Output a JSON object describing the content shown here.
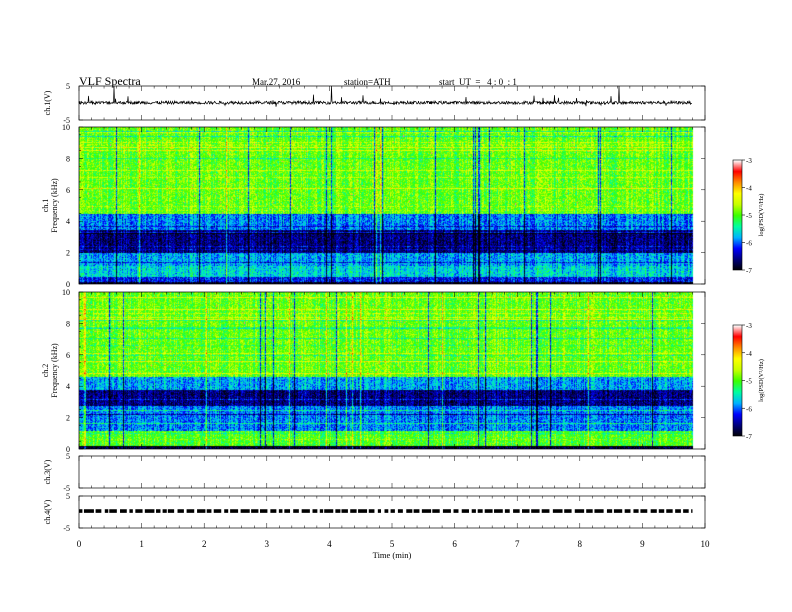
{
  "header": {
    "title": "VLF Spectra",
    "date": "Mar.27, 2016",
    "station": "station=ATH",
    "start": "start  UT  =   4 : 0  : 1"
  },
  "colors": {
    "background": "#ffffff",
    "axis": "#000000",
    "colormap": [
      "#000000",
      "#00007a",
      "#0000ff",
      "#00b4ff",
      "#00ffa0",
      "#3cff00",
      "#c8ff00",
      "#ffff00",
      "#ff8c00",
      "#ff0000",
      "#ffffff"
    ]
  },
  "chart_data": [
    {
      "type": "line",
      "name": "ch1-waveform",
      "ylabel": "ch.1(V)",
      "yticks": [
        "5",
        "-5"
      ],
      "ylim": [
        -5,
        5
      ],
      "xlim": [
        0,
        10
      ],
      "trace": {
        "baseline": 0.1,
        "span_min": [
          0,
          9.8
        ],
        "spikes_typical": [
          -1.2,
          2.5
        ],
        "spikes_max": [
          -5,
          5
        ]
      }
    },
    {
      "type": "heatmap",
      "name": "ch1-spectrogram",
      "ylabel": "ch.1\nFrequency  (kHz)",
      "yticks": [
        "10",
        "8",
        "6",
        "4",
        "2",
        "0"
      ],
      "ylim": [
        0,
        10
      ],
      "xlim": [
        0,
        10
      ],
      "data_extent_min": [
        0,
        9.8
      ],
      "colorbar": {
        "label": "log(PSD(V²/Hz)",
        "ticks": [
          "-3",
          "-4",
          "-5",
          "-6",
          "-7"
        ],
        "range": [
          -7,
          -3
        ]
      },
      "bands": [
        {
          "f": [
            0.0,
            0.15
          ],
          "log_psd": -6.9
        },
        {
          "f": [
            0.15,
            0.5
          ],
          "log_psd": -6.2
        },
        {
          "f": [
            0.5,
            1.2
          ],
          "log_psd": -5.6
        },
        {
          "f": [
            1.2,
            2.0
          ],
          "log_psd": -5.8
        },
        {
          "f": [
            2.0,
            3.5
          ],
          "log_psd": -6.6
        },
        {
          "f": [
            3.5,
            4.5
          ],
          "log_psd": -5.9
        },
        {
          "f": [
            4.5,
            10.0
          ],
          "log_psd": -4.9
        }
      ]
    },
    {
      "type": "heatmap",
      "name": "ch2-spectrogram",
      "ylabel": "ch.2\nFrequency  (kHz)",
      "yticks": [
        "10",
        "8",
        "6",
        "4",
        "2",
        "0"
      ],
      "ylim": [
        0,
        10
      ],
      "xlim": [
        0,
        10
      ],
      "data_extent_min": [
        0,
        9.8
      ],
      "colorbar": {
        "label": "log(PSD(V²/Hz)",
        "ticks": [
          "-3",
          "-4",
          "-5",
          "-6",
          "-7"
        ],
        "range": [
          -7,
          -3
        ]
      },
      "bands": [
        {
          "f": [
            0.0,
            0.2
          ],
          "log_psd": -6.8
        },
        {
          "f": [
            0.2,
            1.2
          ],
          "log_psd": -5.0
        },
        {
          "f": [
            1.2,
            2.8
          ],
          "log_psd": -5.9
        },
        {
          "f": [
            2.8,
            3.8
          ],
          "log_psd": -6.6
        },
        {
          "f": [
            3.8,
            4.6
          ],
          "log_psd": -5.8
        },
        {
          "f": [
            4.6,
            10.0
          ],
          "log_psd": -4.9
        }
      ]
    },
    {
      "type": "line",
      "name": "ch3-waveform",
      "ylabel": "ch.3(V)",
      "yticks": [
        "5",
        "-5"
      ],
      "ylim": [
        -5,
        5
      ],
      "xlim": [
        0,
        10
      ],
      "trace": null
    },
    {
      "type": "line",
      "name": "ch4-waveform",
      "ylabel": "ch.4(V)",
      "yticks": [
        "5",
        "-5"
      ],
      "ylim": [
        -5,
        5
      ],
      "xlim": [
        0,
        10
      ],
      "trace": {
        "baseline": 0.3,
        "span_min": [
          0,
          9.8
        ],
        "dashed": true
      }
    }
  ],
  "xaxis": {
    "label": "Time  (min)",
    "ticks": [
      "0",
      "1",
      "2",
      "3",
      "4",
      "5",
      "6",
      "7",
      "8",
      "9",
      "10"
    ],
    "range": [
      0,
      10
    ]
  }
}
